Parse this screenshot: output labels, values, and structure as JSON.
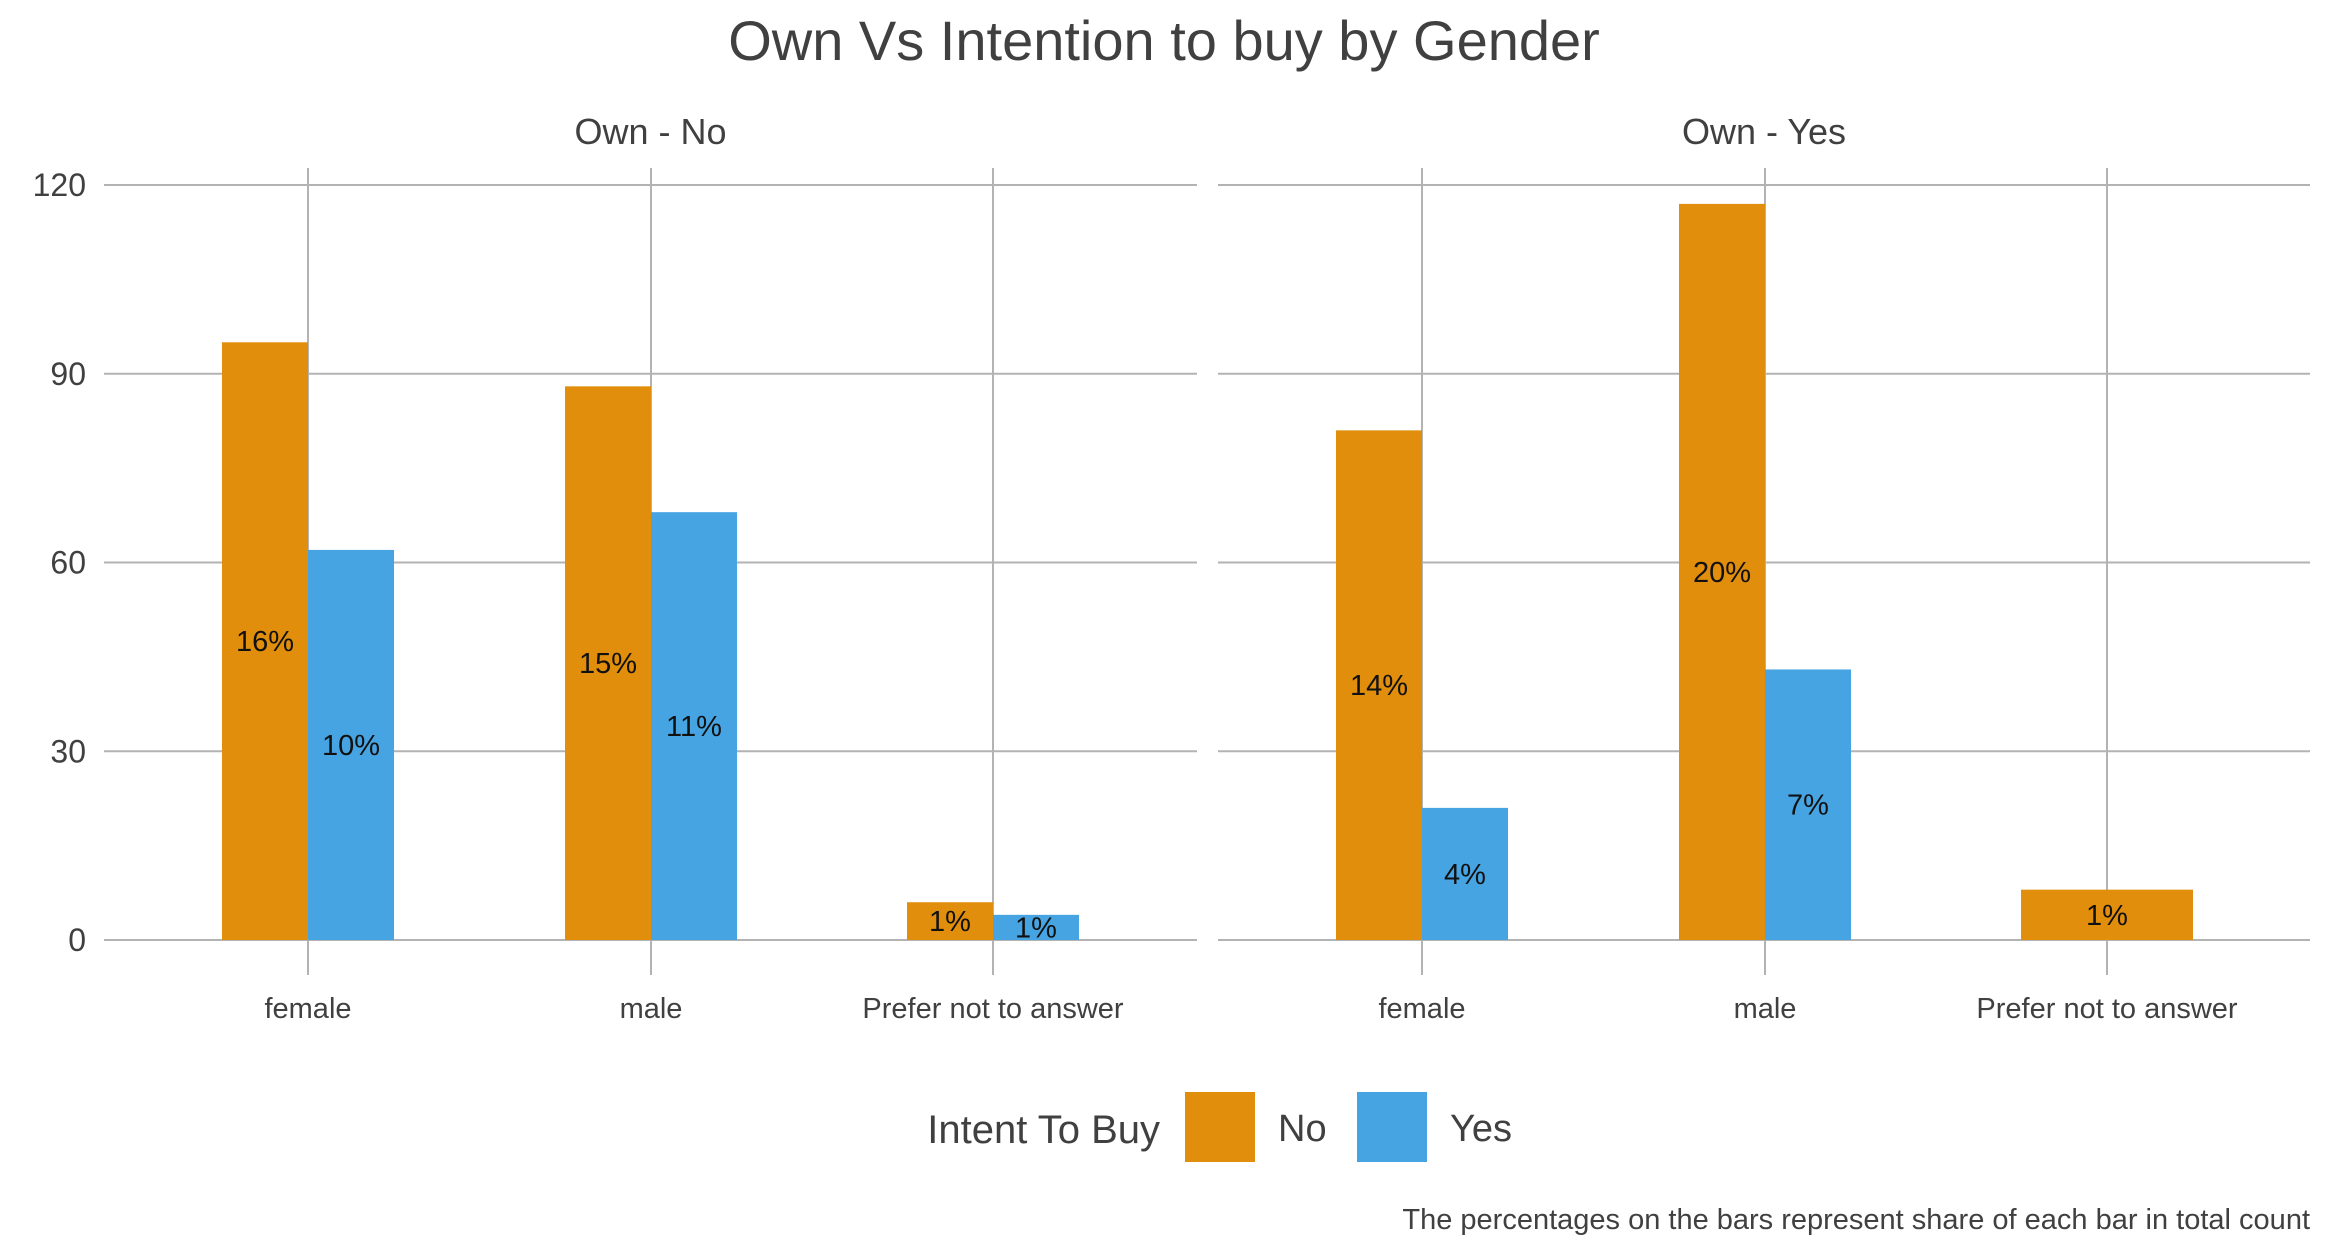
{
  "chart_data": {
    "type": "bar",
    "title": "Own Vs Intention to buy by Gender",
    "caption": "The percentages on the bars represent share of each bar in total count",
    "ylim": [
      0,
      120
    ],
    "yticks": [
      0,
      30,
      60,
      90,
      120
    ],
    "grid": true,
    "legend": {
      "title": "Intent To Buy",
      "position": "bottom",
      "entries": [
        {
          "name": "No",
          "color": "#E08E0B"
        },
        {
          "name": "Yes",
          "color": "#47A4E3"
        }
      ]
    },
    "categories": [
      "female",
      "male",
      "Prefer not to answer"
    ],
    "panels": [
      {
        "strip": "Own - No",
        "series": [
          {
            "name": "No",
            "values": [
              95,
              88,
              6
            ],
            "labels": [
              "16%",
              "15%",
              "1%"
            ]
          },
          {
            "name": "Yes",
            "values": [
              62,
              68,
              4
            ],
            "labels": [
              "10%",
              "11%",
              "1%"
            ]
          }
        ]
      },
      {
        "strip": "Own - Yes",
        "series": [
          {
            "name": "No",
            "values": [
              81,
              117,
              8
            ],
            "labels": [
              "14%",
              "20%",
              "1%"
            ]
          },
          {
            "name": "Yes",
            "values": [
              21,
              43,
              null
            ],
            "labels": [
              "4%",
              "7%",
              null
            ]
          }
        ]
      }
    ]
  }
}
